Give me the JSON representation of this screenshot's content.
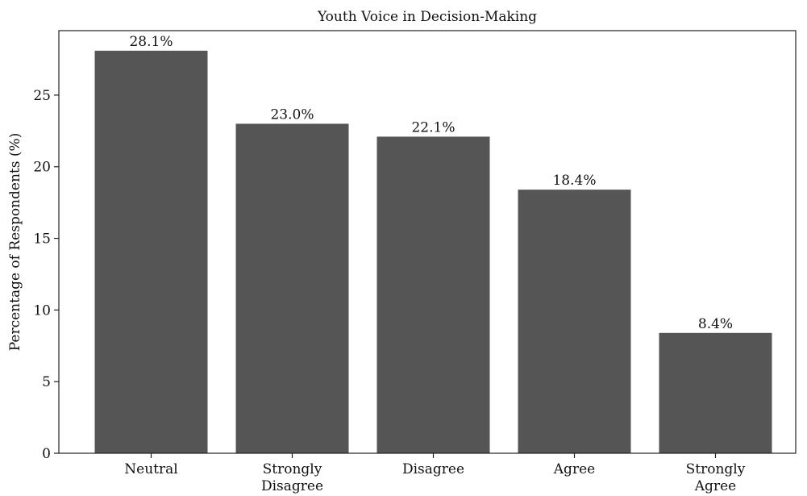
{
  "chart_data": {
    "type": "bar",
    "title": "Youth Voice in Decision-Making",
    "xlabel": "",
    "ylabel": "Percentage of Respondents (%)",
    "categories": [
      [
        "Neutral"
      ],
      [
        "Strongly",
        "Disagree"
      ],
      [
        "Disagree"
      ],
      [
        "Agree"
      ],
      [
        "Strongly",
        "Agree"
      ]
    ],
    "values": [
      28.1,
      23.0,
      22.1,
      18.4,
      8.4
    ],
    "value_labels": [
      "28.1%",
      "23.0%",
      "22.1%",
      "18.4%",
      "8.4%"
    ],
    "ylim": [
      0,
      29.5
    ],
    "yticks": [
      0,
      5,
      10,
      15,
      20,
      25
    ],
    "grid": false,
    "bar_color": "#555555"
  }
}
